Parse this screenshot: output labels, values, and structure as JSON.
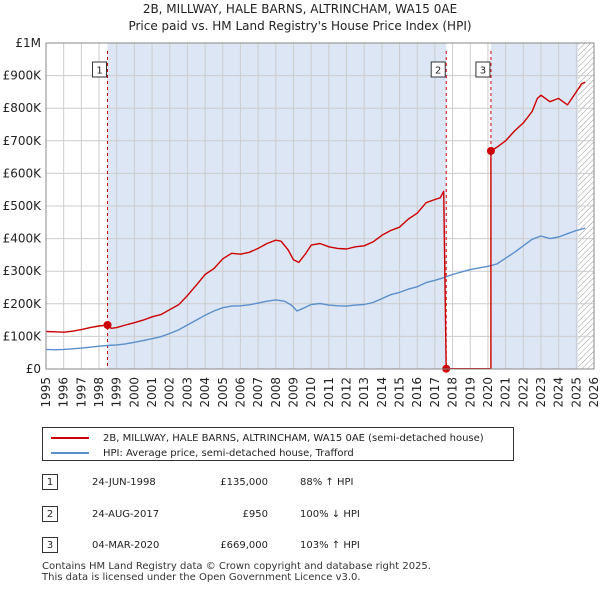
{
  "title_line1": "2B, MILLWAY, HALE BARNS, ALTRINCHAM, WA15 0AE",
  "title_line2": "Price paid vs. HM Land Registry's House Price Index (HPI)",
  "colors": {
    "property": "#cc0000",
    "hpi": "#5b8fcc",
    "shade": "#dde6f5",
    "grid": "#cccccc"
  },
  "chart_data": {
    "type": "line",
    "title": "Price paid vs. HM Land Registry's House Price Index (HPI)",
    "xlabel": "",
    "ylabel": "",
    "xlim": [
      1995,
      2026
    ],
    "ylim": [
      0,
      1000000
    ],
    "y_ticks": [
      {
        "value": 0,
        "label": "£0"
      },
      {
        "value": 100000,
        "label": "£100K"
      },
      {
        "value": 200000,
        "label": "£200K"
      },
      {
        "value": 300000,
        "label": "£300K"
      },
      {
        "value": 400000,
        "label": "£400K"
      },
      {
        "value": 500000,
        "label": "£500K"
      },
      {
        "value": 600000,
        "label": "£600K"
      },
      {
        "value": 700000,
        "label": "£700K"
      },
      {
        "value": 800000,
        "label": "£800K"
      },
      {
        "value": 900000,
        "label": "£900K"
      },
      {
        "value": 1000000,
        "label": "£1M"
      }
    ],
    "x_ticks": [
      "1995",
      "1996",
      "1997",
      "1998",
      "1999",
      "2000",
      "2001",
      "2002",
      "2003",
      "2004",
      "2005",
      "2006",
      "2007",
      "2008",
      "2009",
      "2010",
      "2011",
      "2012",
      "2013",
      "2014",
      "2015",
      "2016",
      "2017",
      "2018",
      "2019",
      "2020",
      "2021",
      "2022",
      "2023",
      "2024",
      "2025",
      "2026"
    ],
    "series": [
      {
        "name": "2B, MILLWAY, HALE BARNS, ALTRINCHAM, WA15 0AE (semi-detached house)",
        "color": "#cc0000",
        "points": [
          [
            1995.0,
            115000
          ],
          [
            1995.5,
            114000
          ],
          [
            1996.0,
            113000
          ],
          [
            1996.5,
            116000
          ],
          [
            1997.0,
            121000
          ],
          [
            1997.5,
            127000
          ],
          [
            1998.0,
            132000
          ],
          [
            1998.48,
            135000
          ],
          [
            1998.7,
            125000
          ],
          [
            1999.0,
            127000
          ],
          [
            1999.5,
            135000
          ],
          [
            2000.0,
            142000
          ],
          [
            2000.5,
            150000
          ],
          [
            2001.0,
            160000
          ],
          [
            2001.5,
            167000
          ],
          [
            2002.0,
            182000
          ],
          [
            2002.5,
            197000
          ],
          [
            2003.0,
            225000
          ],
          [
            2003.5,
            257000
          ],
          [
            2004.0,
            290000
          ],
          [
            2004.5,
            308000
          ],
          [
            2005.0,
            338000
          ],
          [
            2005.5,
            355000
          ],
          [
            2006.0,
            352000
          ],
          [
            2006.5,
            358000
          ],
          [
            2007.0,
            370000
          ],
          [
            2007.5,
            385000
          ],
          [
            2008.0,
            395000
          ],
          [
            2008.3,
            392000
          ],
          [
            2008.7,
            365000
          ],
          [
            2009.0,
            335000
          ],
          [
            2009.3,
            327000
          ],
          [
            2009.7,
            355000
          ],
          [
            2010.0,
            380000
          ],
          [
            2010.5,
            385000
          ],
          [
            2011.0,
            375000
          ],
          [
            2011.5,
            370000
          ],
          [
            2012.0,
            368000
          ],
          [
            2012.5,
            375000
          ],
          [
            2013.0,
            378000
          ],
          [
            2013.5,
            390000
          ],
          [
            2014.0,
            410000
          ],
          [
            2014.5,
            425000
          ],
          [
            2015.0,
            435000
          ],
          [
            2015.5,
            460000
          ],
          [
            2016.0,
            478000
          ],
          [
            2016.5,
            510000
          ],
          [
            2017.0,
            520000
          ],
          [
            2017.3,
            525000
          ],
          [
            2017.5,
            545000
          ],
          [
            2017.64,
            950
          ],
          [
            2020.17,
            950
          ],
          [
            2020.17,
            669000
          ],
          [
            2020.5,
            680000
          ],
          [
            2021.0,
            700000
          ],
          [
            2021.5,
            730000
          ],
          [
            2022.0,
            755000
          ],
          [
            2022.5,
            790000
          ],
          [
            2022.8,
            830000
          ],
          [
            2023.0,
            840000
          ],
          [
            2023.5,
            820000
          ],
          [
            2024.0,
            830000
          ],
          [
            2024.5,
            810000
          ],
          [
            2025.0,
            850000
          ],
          [
            2025.3,
            875000
          ],
          [
            2025.5,
            880000
          ]
        ]
      },
      {
        "name": "HPI: Average price, semi-detached house, Trafford",
        "color": "#5b8fcc",
        "points": [
          [
            1995.0,
            60000
          ],
          [
            1995.5,
            59000
          ],
          [
            1996.0,
            60000
          ],
          [
            1996.5,
            62000
          ],
          [
            1997.0,
            64000
          ],
          [
            1997.5,
            67000
          ],
          [
            1998.0,
            70000
          ],
          [
            1998.5,
            72000
          ],
          [
            1999.0,
            74000
          ],
          [
            1999.5,
            77000
          ],
          [
            2000.0,
            82000
          ],
          [
            2000.5,
            87000
          ],
          [
            2001.0,
            93000
          ],
          [
            2001.5,
            99000
          ],
          [
            2002.0,
            109000
          ],
          [
            2002.5,
            120000
          ],
          [
            2003.0,
            135000
          ],
          [
            2003.5,
            150000
          ],
          [
            2004.0,
            165000
          ],
          [
            2004.5,
            178000
          ],
          [
            2005.0,
            188000
          ],
          [
            2005.5,
            193000
          ],
          [
            2006.0,
            194000
          ],
          [
            2006.5,
            197000
          ],
          [
            2007.0,
            202000
          ],
          [
            2007.5,
            208000
          ],
          [
            2008.0,
            212000
          ],
          [
            2008.5,
            208000
          ],
          [
            2008.9,
            195000
          ],
          [
            2009.2,
            178000
          ],
          [
            2009.5,
            185000
          ],
          [
            2010.0,
            198000
          ],
          [
            2010.5,
            201000
          ],
          [
            2011.0,
            196000
          ],
          [
            2011.5,
            194000
          ],
          [
            2012.0,
            193000
          ],
          [
            2012.5,
            196000
          ],
          [
            2013.0,
            198000
          ],
          [
            2013.5,
            204000
          ],
          [
            2014.0,
            216000
          ],
          [
            2014.5,
            228000
          ],
          [
            2015.0,
            235000
          ],
          [
            2015.5,
            245000
          ],
          [
            2016.0,
            252000
          ],
          [
            2016.5,
            265000
          ],
          [
            2017.0,
            272000
          ],
          [
            2017.5,
            280000
          ],
          [
            2018.0,
            290000
          ],
          [
            2018.5,
            298000
          ],
          [
            2019.0,
            305000
          ],
          [
            2019.5,
            310000
          ],
          [
            2020.0,
            315000
          ],
          [
            2020.5,
            322000
          ],
          [
            2021.0,
            340000
          ],
          [
            2021.5,
            358000
          ],
          [
            2022.0,
            378000
          ],
          [
            2022.5,
            398000
          ],
          [
            2023.0,
            408000
          ],
          [
            2023.5,
            400000
          ],
          [
            2024.0,
            405000
          ],
          [
            2024.5,
            415000
          ],
          [
            2025.0,
            425000
          ],
          [
            2025.5,
            432000
          ]
        ]
      }
    ],
    "annotations": [
      {
        "label": "1",
        "x": 1998.48
      },
      {
        "label": "2",
        "x": 2017.64
      },
      {
        "label": "3",
        "x": 2020.17
      }
    ],
    "sale_points": [
      {
        "x": 1998.48,
        "y": 135000
      },
      {
        "x": 2017.64,
        "y": 950
      },
      {
        "x": 2020.17,
        "y": 669000
      }
    ],
    "shaded_regions": [
      [
        1998.48,
        2017.64
      ],
      [
        2020.17,
        2025.1
      ]
    ],
    "hatched_from": 2025.1,
    "legend_position": "below"
  },
  "legend": {
    "property_label": "2B, MILLWAY, HALE BARNS, ALTRINCHAM, WA15 0AE (semi-detached house)",
    "hpi_label": "HPI: Average price, semi-detached house, Trafford"
  },
  "transactions": [
    {
      "num": "1",
      "date": "24-JUN-1998",
      "price": "£135,000",
      "hpi": "88% ↑ HPI"
    },
    {
      "num": "2",
      "date": "24-AUG-2017",
      "price": "£950",
      "hpi": "100% ↓ HPI"
    },
    {
      "num": "3",
      "date": "04-MAR-2020",
      "price": "£669,000",
      "hpi": "103% ↑ HPI"
    }
  ],
  "footer": {
    "line1": "Contains HM Land Registry data © Crown copyright and database right 2025.",
    "line2": "This data is licensed under the Open Government Licence v3.0."
  }
}
